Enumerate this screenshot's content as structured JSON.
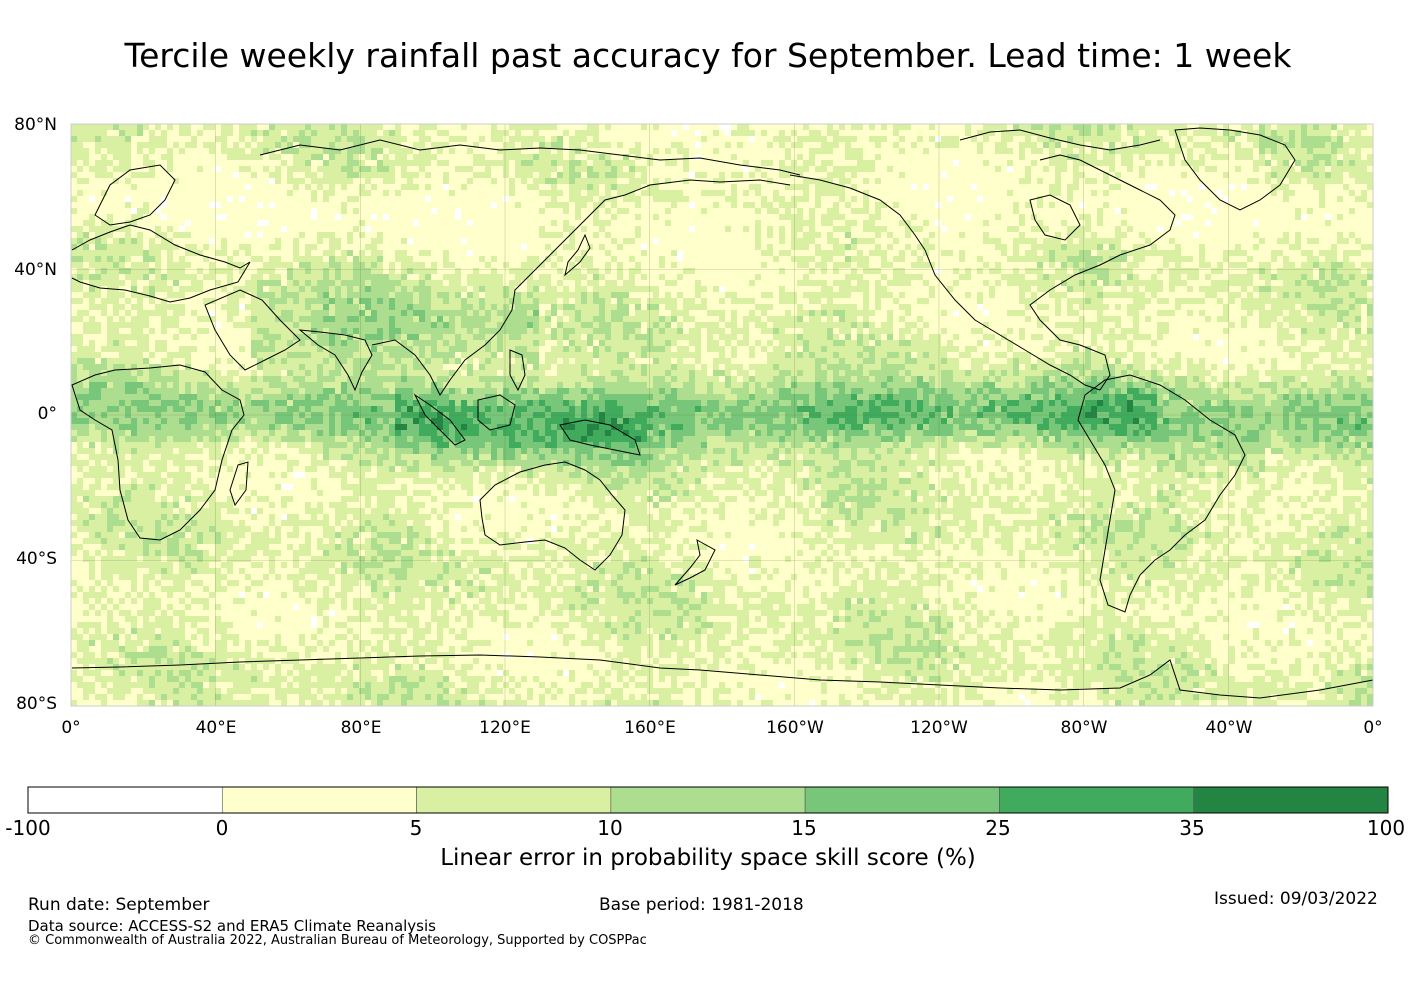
{
  "title": "Tercile weekly rainfall past accuracy for September. Lead time: 1 week",
  "map": {
    "lat_labels": [
      "80°N",
      "40°N",
      "0°",
      "40°S",
      "80°S"
    ],
    "lon_labels": [
      "0°",
      "40°E",
      "80°E",
      "120°E",
      "160°E",
      "160°W",
      "120°W",
      "80°W",
      "40°W",
      "0°"
    ],
    "lat_range": [
      -80,
      80
    ],
    "lon_range": [
      0,
      360
    ]
  },
  "colorbar": {
    "ticks": [
      "-100",
      "0",
      "5",
      "10",
      "15",
      "25",
      "35",
      "100"
    ],
    "colors": [
      "#ffffff",
      "#ffffcc",
      "#d9f0a3",
      "#addd8e",
      "#78c679",
      "#41ab5d",
      "#238443"
    ],
    "label": "Linear error in probability space skill score (%)"
  },
  "footer": {
    "run_date": "Run date: September",
    "base_period": "Base period: 1981-2018",
    "issued": "Issued: 09/03/2022",
    "data_source": "Data source: ACCESS-S2 and ERA5 Climate Reanalysis",
    "copyright": "© Commonwealth of Australia 2022, Australian Bureau of Meteorology, Supported by COSPPac"
  }
}
